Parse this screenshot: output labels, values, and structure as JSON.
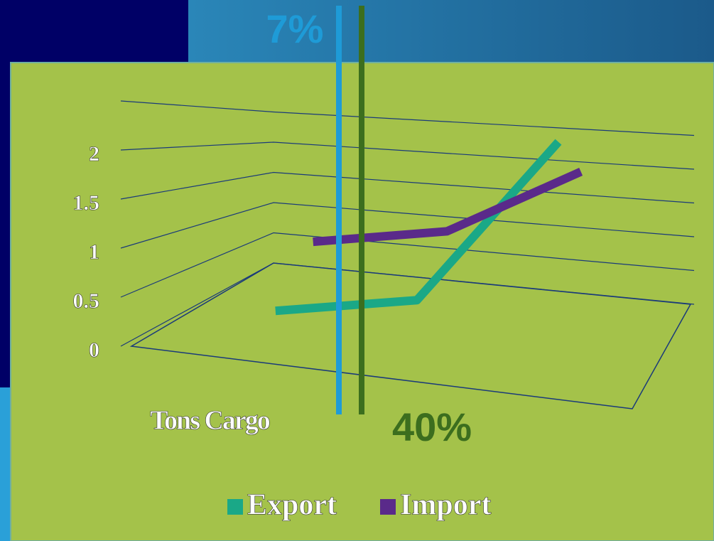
{
  "chart_data": {
    "type": "line",
    "categories": [
      "Tons Cargo",
      null,
      null
    ],
    "series": [
      {
        "name": "Export",
        "color": "#1aa887",
        "values": [
          0.2,
          0.5,
          2.4
        ]
      },
      {
        "name": "Import",
        "color": "#5a2a8a",
        "values": [
          0.8,
          1.1,
          2.0
        ]
      }
    ],
    "ylim": [
      0,
      2.5
    ],
    "yticks": [
      0,
      0.5,
      1,
      1.5,
      2
    ],
    "grid": true,
    "legend": "bottom",
    "annotations": [
      {
        "text": "7%",
        "color": "#1e9bd7"
      },
      {
        "text": "40%",
        "color": "#3c6e1e"
      }
    ]
  }
}
